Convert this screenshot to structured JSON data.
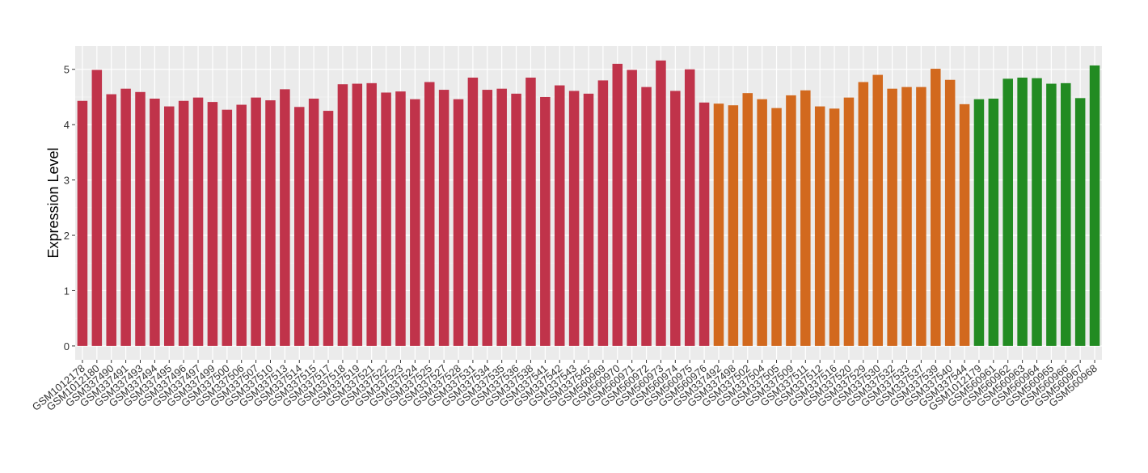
{
  "chart_data": {
    "type": "bar",
    "y_label": "Expression Level",
    "categories": [
      "GSM1012178",
      "GSM1012180",
      "GSM337490",
      "GSM337491",
      "GSM337493",
      "GSM337494",
      "GSM337495",
      "GSM337496",
      "GSM337497",
      "GSM337499",
      "GSM337500",
      "GSM337506",
      "GSM337507",
      "GSM337510",
      "GSM337513",
      "GSM337514",
      "GSM337515",
      "GSM337517",
      "GSM337518",
      "GSM337519",
      "GSM337521",
      "GSM337522",
      "GSM337523",
      "GSM337524",
      "GSM337525",
      "GSM337527",
      "GSM337528",
      "GSM337531",
      "GSM337534",
      "GSM337535",
      "GSM337536",
      "GSM337538",
      "GSM337541",
      "GSM337542",
      "GSM337543",
      "GSM337545",
      "GSM560969",
      "GSM560970",
      "GSM560971",
      "GSM560972",
      "GSM560973",
      "GSM560974",
      "GSM560975",
      "GSM560976",
      "GSM337492",
      "GSM337498",
      "GSM337502",
      "GSM337504",
      "GSM337505",
      "GSM337509",
      "GSM337511",
      "GSM337512",
      "GSM337516",
      "GSM337520",
      "GSM337529",
      "GSM337530",
      "GSM337532",
      "GSM337533",
      "GSM337537",
      "GSM337539",
      "GSM337540",
      "GSM337544",
      "GSM1012179",
      "GSM560961",
      "GSM560962",
      "GSM560963",
      "GSM560964",
      "GSM560965",
      "GSM560966",
      "GSM560967",
      "GSM560968"
    ],
    "values": [
      4.43,
      4.99,
      4.55,
      4.65,
      4.59,
      4.47,
      4.33,
      4.43,
      4.49,
      4.41,
      4.27,
      4.36,
      4.49,
      4.44,
      4.64,
      4.32,
      4.47,
      4.25,
      4.73,
      4.74,
      4.75,
      4.58,
      4.6,
      4.46,
      4.77,
      4.63,
      4.46,
      4.85,
      4.63,
      4.65,
      4.56,
      4.85,
      4.5,
      4.71,
      4.61,
      4.56,
      4.8,
      5.1,
      4.99,
      4.68,
      5.16,
      4.61,
      5.0,
      4.4,
      4.38,
      4.35,
      4.57,
      4.46,
      4.3,
      4.53,
      4.62,
      4.33,
      4.29,
      4.49,
      4.77,
      4.9,
      4.65,
      4.68,
      4.68,
      5.01,
      4.81,
      4.37,
      4.46,
      4.47,
      4.83,
      4.85,
      4.84,
      4.74,
      4.75,
      4.48,
      5.07
    ],
    "colors": [
      "#c0334a",
      "#c0334a",
      "#c0334a",
      "#c0334a",
      "#c0334a",
      "#c0334a",
      "#c0334a",
      "#c0334a",
      "#c0334a",
      "#c0334a",
      "#c0334a",
      "#c0334a",
      "#c0334a",
      "#c0334a",
      "#c0334a",
      "#c0334a",
      "#c0334a",
      "#c0334a",
      "#c0334a",
      "#c0334a",
      "#c0334a",
      "#c0334a",
      "#c0334a",
      "#c0334a",
      "#c0334a",
      "#c0334a",
      "#c0334a",
      "#c0334a",
      "#c0334a",
      "#c0334a",
      "#c0334a",
      "#c0334a",
      "#c0334a",
      "#c0334a",
      "#c0334a",
      "#c0334a",
      "#c0334a",
      "#c0334a",
      "#c0334a",
      "#c0334a",
      "#c0334a",
      "#c0334a",
      "#c0334a",
      "#c0334a",
      "#d2691e",
      "#d2691e",
      "#d2691e",
      "#d2691e",
      "#d2691e",
      "#d2691e",
      "#d2691e",
      "#d2691e",
      "#d2691e",
      "#d2691e",
      "#d2691e",
      "#d2691e",
      "#d2691e",
      "#d2691e",
      "#d2691e",
      "#d2691e",
      "#d2691e",
      "#d2691e",
      "#228b22",
      "#228b22",
      "#228b22",
      "#228b22",
      "#228b22",
      "#228b22",
      "#228b22",
      "#228b22",
      "#228b22"
    ],
    "ylim": [
      -0.25,
      5.42
    ],
    "yticks": [
      0,
      1,
      2,
      3,
      4,
      5
    ],
    "grid": true
  }
}
